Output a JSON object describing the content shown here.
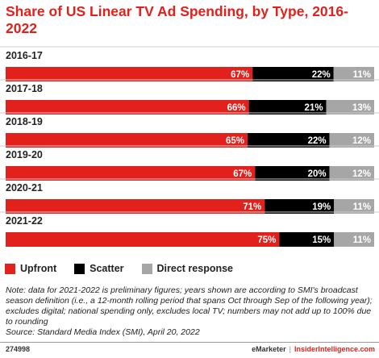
{
  "chart_data": {
    "type": "bar",
    "orientation": "horizontal",
    "stacked": true,
    "title": "Share of US Linear TV Ad Spending, by Type, 2016-2022",
    "categories": [
      "2016-17",
      "2017-18",
      "2018-19",
      "2019-20",
      "2020-21",
      "2021-22"
    ],
    "series": [
      {
        "name": "Upfront",
        "color": "#e2211c",
        "values": [
          67,
          66,
          65,
          67,
          71,
          75
        ]
      },
      {
        "name": "Scatter",
        "color": "#000000",
        "values": [
          22,
          21,
          22,
          20,
          19,
          15
        ]
      },
      {
        "name": "Direct response",
        "color": "#a6a6a6",
        "values": [
          11,
          13,
          12,
          12,
          11,
          11
        ]
      }
    ],
    "value_suffix": "%",
    "legend_position": "bottom-left",
    "grid": false
  },
  "legend": {
    "items": [
      {
        "label": "Upfront",
        "color": "#e2211c"
      },
      {
        "label": "Scatter",
        "color": "#000000"
      },
      {
        "label": "Direct response",
        "color": "#a6a6a6"
      }
    ]
  },
  "note": "Note: data for 2021-2022 is preliminary figures; years shown are according to SMI's broadcast season definition (i.e., a 12-month rolling period that spans Oct through Sep of the following year); excludes digital; national spending only, excludes local TV; numbers may not add up to 100% due to rounding",
  "source": "Source: Standard Media Index (SMI), April 20, 2022",
  "footer": {
    "chart_id": "274998",
    "brand_left": "eMarketer",
    "separator": "|",
    "brand_right": "InsiderIntelligence.com"
  }
}
